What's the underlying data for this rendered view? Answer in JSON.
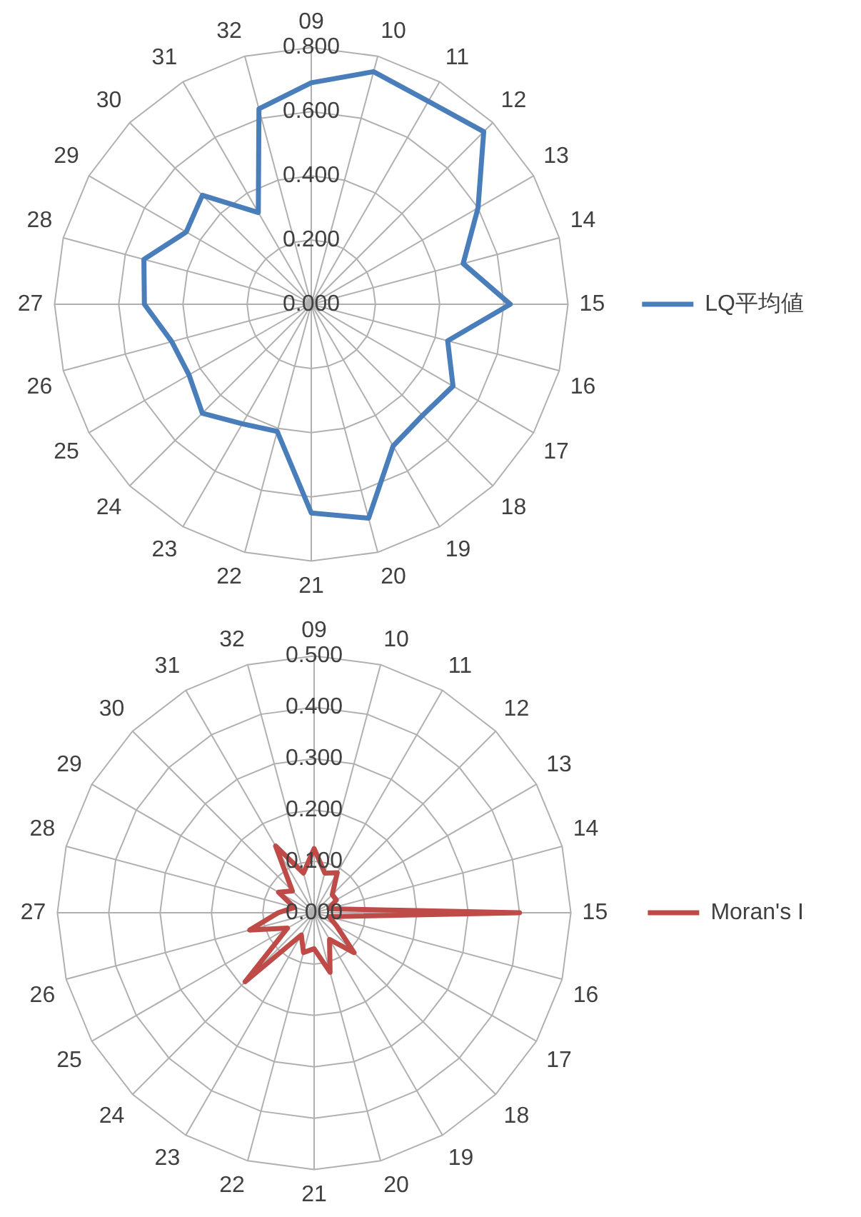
{
  "chart_data": [
    {
      "type": "radar",
      "categories": [
        "09",
        "10",
        "11",
        "12",
        "13",
        "14",
        "15",
        "16",
        "17",
        "18",
        "19",
        "20",
        "21",
        "22",
        "23",
        "24",
        "25",
        "26",
        "27",
        "28",
        "29",
        "30",
        "31",
        "32"
      ],
      "series": [
        {
          "name": "LQ平均値",
          "color": "#4a7ebb",
          "values": [
            0.69,
            0.75,
            0.73,
            0.76,
            0.6,
            0.49,
            0.62,
            0.44,
            0.51,
            0.49,
            0.51,
            0.69,
            0.65,
            0.41,
            0.43,
            0.48,
            0.44,
            0.45,
            0.52,
            0.54,
            0.45,
            0.48,
            0.33,
            0.63
          ]
        }
      ],
      "ylim": [
        0,
        0.8
      ],
      "yticks": [
        {
          "value": 0,
          "label": "0.000"
        },
        {
          "value": 0.2,
          "label": "0.200"
        },
        {
          "value": 0.4,
          "label": "0.400"
        },
        {
          "value": 0.6,
          "label": "0.600"
        },
        {
          "value": 0.8,
          "label": "0.800"
        }
      ],
      "grid": true,
      "legend": "right",
      "marker": "none"
    },
    {
      "type": "radar",
      "categories": [
        "09",
        "10",
        "11",
        "12",
        "13",
        "14",
        "15",
        "16",
        "17",
        "18",
        "19",
        "20",
        "21",
        "22",
        "23",
        "24",
        "25",
        "26",
        "27",
        "28",
        "29",
        "30",
        "31",
        "32"
      ],
      "series": [
        {
          "name": "Moran's I",
          "color": "#be4b48",
          "values": [
            0.125,
            0.08,
            0.09,
            0.05,
            0.05,
            0.03,
            0.4,
            0.03,
            0.05,
            0.11,
            0.06,
            0.12,
            0.07,
            0.08,
            0.05,
            0.19,
            0.06,
            0.13,
            0.07,
            0.04,
            0.08,
            0.06,
            0.15,
            0.08
          ]
        }
      ],
      "ylim": [
        0,
        0.5
      ],
      "yticks": [
        {
          "value": 0,
          "label": "0.000"
        },
        {
          "value": 0.1,
          "label": "0.100"
        },
        {
          "value": 0.2,
          "label": "0.200"
        },
        {
          "value": 0.3,
          "label": "0.300"
        },
        {
          "value": 0.4,
          "label": "0.400"
        },
        {
          "value": 0.5,
          "label": "0.500"
        }
      ],
      "grid": true,
      "legend": "right",
      "marker": "none"
    }
  ]
}
